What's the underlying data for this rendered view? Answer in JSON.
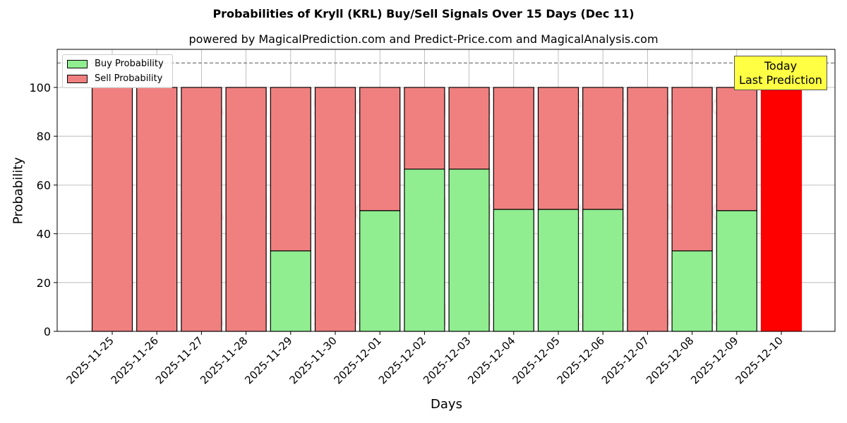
{
  "header": {
    "title": "Probabilities of Kryll (KRL) Buy/Sell Signals Over 15 Days (Dec 11)",
    "subtitle": "powered by MagicalPrediction.com and Predict-Price.com and MagicalAnalysis.com"
  },
  "legend": {
    "buy": "Buy Probability",
    "sell": "Sell Probability"
  },
  "annotation": {
    "line1": "Today",
    "line2": "Last Prediction"
  },
  "watermarks": [
    "MagicalAnalysis.com",
    "MagicalPrediction.com"
  ],
  "colors": {
    "buy": "#90ee90",
    "sell": "#f08080",
    "today_sell": "#ff0000",
    "annotation_bg": "#ffff44"
  },
  "chart_data": {
    "type": "bar",
    "stacked": true,
    "title": "Probabilities of Kryll (KRL) Buy/Sell Signals Over 15 Days (Dec 11)",
    "subtitle": "powered by MagicalPrediction.com and Predict-Price.com and MagicalAnalysis.com",
    "xlabel": "Days",
    "ylabel": "Probability",
    "ylim": [
      0,
      115
    ],
    "yticks": [
      0,
      20,
      40,
      60,
      80,
      100
    ],
    "reference_line": 110,
    "grid": true,
    "legend_position": "upper left",
    "categories": [
      "2025-11-25",
      "2025-11-26",
      "2025-11-27",
      "2025-11-28",
      "2025-11-29",
      "2025-11-30",
      "2025-12-01",
      "2025-12-02",
      "2025-12-03",
      "2025-12-04",
      "2025-12-05",
      "2025-12-06",
      "2025-12-07",
      "2025-12-08",
      "2025-12-09",
      "2025-12-10"
    ],
    "series": [
      {
        "name": "Buy Probability",
        "values": [
          0,
          0,
          0,
          0,
          33,
          0,
          49.5,
          66.5,
          66.5,
          50,
          50,
          50,
          0,
          33,
          49.5,
          0
        ]
      },
      {
        "name": "Sell Probability",
        "values": [
          100,
          100,
          100,
          100,
          67,
          100,
          50.5,
          33.5,
          33.5,
          50,
          50,
          50,
          100,
          67,
          50.5,
          100
        ]
      }
    ],
    "annotations": [
      {
        "text": "Today\nLast Prediction",
        "x": "2025-12-10"
      }
    ]
  }
}
